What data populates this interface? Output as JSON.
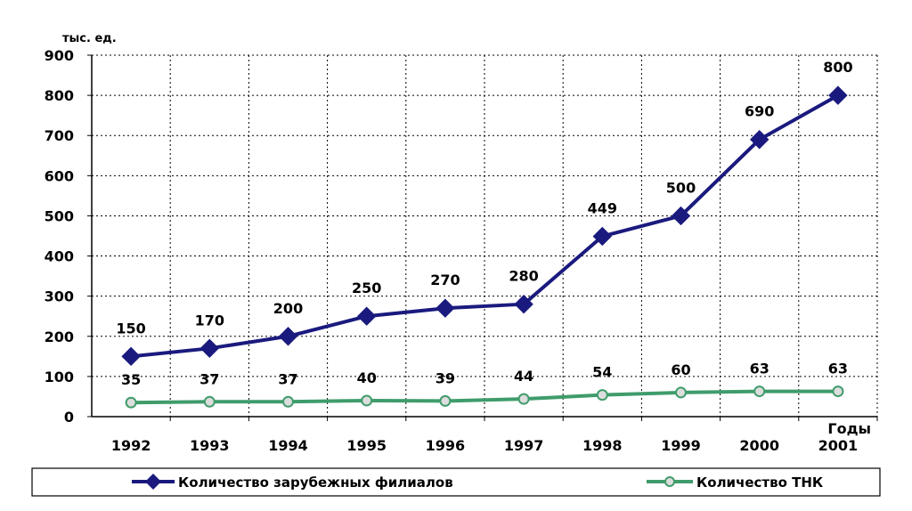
{
  "chart_data": {
    "type": "line",
    "ylabel": "тыс. ед.",
    "xlabel": "Годы",
    "ylim": [
      0,
      900
    ],
    "y_ticks": [
      0,
      100,
      200,
      300,
      400,
      500,
      600,
      700,
      800,
      900
    ],
    "y_tick_labels": [
      "0",
      "100",
      "200",
      "300",
      "400",
      "500",
      "600",
      "700",
      "800",
      "900"
    ],
    "categories": [
      "1992",
      "1993",
      "1994",
      "1995",
      "1996",
      "1997",
      "1998",
      "1999",
      "2000",
      "2001"
    ],
    "grid": true,
    "legend_position": "bottom",
    "series": [
      {
        "name": "Количество зарубежных филиалов",
        "color": "#1a1a7e",
        "marker": "diamond",
        "values": [
          150,
          170,
          200,
          250,
          270,
          280,
          449,
          500,
          690,
          800
        ],
        "labels": [
          "150",
          "170",
          "200",
          "250",
          "270",
          "280",
          "449",
          "500",
          "690",
          "800"
        ]
      },
      {
        "name": "Количество ТНК",
        "color": "#3f9c6b",
        "marker": "circle",
        "values": [
          35,
          37,
          37,
          40,
          39,
          44,
          54,
          60,
          63,
          63
        ],
        "labels": [
          "35",
          "37",
          "37",
          "40",
          "39",
          "44",
          "54",
          "60",
          "63",
          "63"
        ]
      }
    ]
  }
}
